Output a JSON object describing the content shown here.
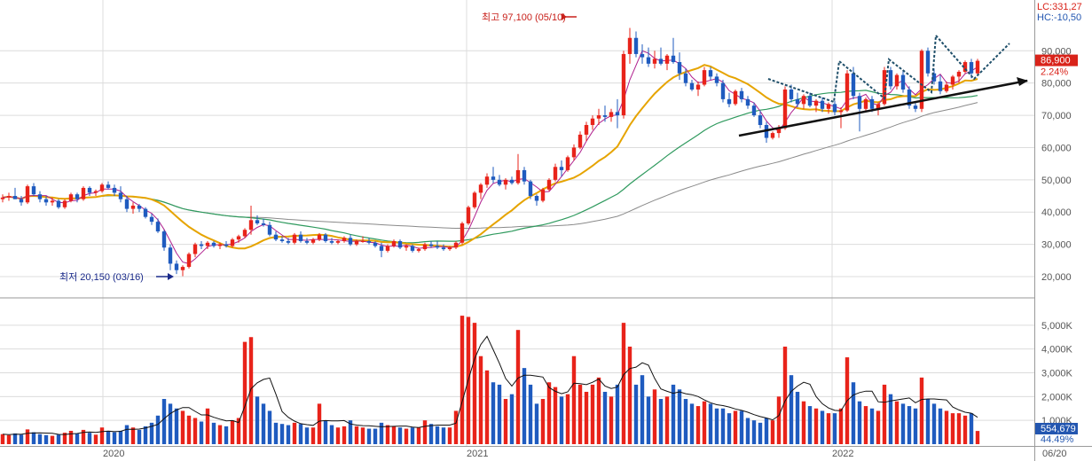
{
  "chart_data": {
    "type": "candlestick",
    "x_ticks": [
      "2020",
      "2021",
      "2022",
      "06/20"
    ],
    "price_axis": {
      "ticks": [
        "20,000",
        "30,000",
        "40,000",
        "50,000",
        "60,000",
        "70,000",
        "80,000",
        "90,000"
      ],
      "ylim": [
        14500,
        103000
      ]
    },
    "volume_axis": {
      "ticks": [
        "1,000K",
        "2,000K",
        "3,000K",
        "4,000K",
        "5,000K"
      ],
      "ylim": [
        0,
        6000
      ]
    },
    "readouts": {
      "lc": "LC:331,27",
      "hc": "HC:-10,50"
    },
    "current_price": {
      "value": 86900,
      "label": "86,900",
      "change": "2.24%"
    },
    "current_volume": {
      "label": "554,679",
      "pct": "44.49%"
    },
    "annotations": {
      "high": {
        "label": "최고 97,100 (05/10)",
        "value": 97100,
        "index": 91
      },
      "low": {
        "label": "최저 20,150 (03/16)",
        "value": 20150,
        "index": 29
      }
    },
    "colors": {
      "up": "#e8231a",
      "down": "#1f5bbf",
      "ma_short": "#b0208e",
      "ma_mid": "#e6a400",
      "ma_long": "#2f9a5e",
      "ma_longest": "#8a8a8a",
      "current_badge": "#d9231a",
      "volume_badge": "#2356b0"
    },
    "candles": [
      [
        44000,
        45500,
        43000,
        44500,
        420
      ],
      [
        44500,
        46000,
        43500,
        45000,
        380
      ],
      [
        45000,
        47500,
        44000,
        44000,
        450
      ],
      [
        44000,
        45000,
        42000,
        43000,
        400
      ],
      [
        43000,
        48500,
        42500,
        48000,
        620
      ],
      [
        48000,
        49000,
        45000,
        45500,
        500
      ],
      [
        45500,
        46500,
        43000,
        44000,
        420
      ],
      [
        44000,
        45000,
        42000,
        43000,
        380
      ],
      [
        43000,
        44500,
        42000,
        43500,
        350
      ],
      [
        43500,
        44000,
        41000,
        41500,
        400
      ],
      [
        41500,
        44000,
        41000,
        43500,
        480
      ],
      [
        43500,
        46000,
        43000,
        45500,
        560
      ],
      [
        45500,
        46000,
        43000,
        44000,
        440
      ],
      [
        44000,
        48000,
        43500,
        47500,
        600
      ],
      [
        47500,
        48000,
        45000,
        46000,
        480
      ],
      [
        46000,
        47000,
        45000,
        46500,
        400
      ],
      [
        46500,
        49000,
        46000,
        48500,
        700
      ],
      [
        48500,
        49500,
        47000,
        47500,
        550
      ],
      [
        47500,
        48500,
        45000,
        46000,
        500
      ],
      [
        46000,
        48000,
        43000,
        44000,
        560
      ],
      [
        44000,
        45000,
        40000,
        41000,
        800
      ],
      [
        41000,
        43000,
        39500,
        42000,
        700
      ],
      [
        42000,
        42500,
        40000,
        41000,
        600
      ],
      [
        41000,
        41500,
        38000,
        38500,
        750
      ],
      [
        38500,
        39500,
        36000,
        37000,
        900
      ],
      [
        37000,
        38000,
        33500,
        34000,
        1200
      ],
      [
        34000,
        34500,
        28000,
        29000,
        1900
      ],
      [
        29000,
        30000,
        22000,
        24000,
        1700
      ],
      [
        24000,
        25000,
        20800,
        22000,
        1500
      ],
      [
        22000,
        23500,
        20150,
        23000,
        1400
      ],
      [
        23000,
        27500,
        22500,
        27000,
        1200
      ],
      [
        27000,
        30500,
        26000,
        30000,
        1100
      ],
      [
        30000,
        31000,
        28500,
        29500,
        950
      ],
      [
        29500,
        31000,
        28500,
        30500,
        1500
      ],
      [
        30500,
        31000,
        29000,
        29500,
        900
      ],
      [
        29500,
        30500,
        28500,
        30000,
        800
      ],
      [
        30000,
        31000,
        29000,
        29500,
        750
      ],
      [
        29500,
        32000,
        29000,
        31500,
        1000
      ],
      [
        31500,
        33000,
        30500,
        32500,
        1100
      ],
      [
        32500,
        35000,
        32000,
        34500,
        4300
      ],
      [
        34500,
        42000,
        33000,
        37500,
        4500
      ],
      [
        37500,
        39000,
        36000,
        36500,
        2000
      ],
      [
        36500,
        38000,
        35500,
        36000,
        1700
      ],
      [
        36000,
        37000,
        32500,
        33000,
        1400
      ],
      [
        33000,
        34000,
        31000,
        31500,
        900
      ],
      [
        31500,
        32500,
        30500,
        31000,
        850
      ],
      [
        31000,
        32000,
        30000,
        30500,
        800
      ],
      [
        30500,
        33500,
        30000,
        33000,
        900
      ],
      [
        33000,
        34000,
        30500,
        31000,
        850
      ],
      [
        31000,
        32000,
        30000,
        30500,
        700
      ],
      [
        30500,
        32000,
        30000,
        31500,
        700
      ],
      [
        31500,
        33500,
        31000,
        33000,
        1700
      ],
      [
        33000,
        33500,
        30500,
        31000,
        1000
      ],
      [
        31000,
        32000,
        30000,
        30500,
        800
      ],
      [
        30500,
        31500,
        30000,
        31000,
        700
      ],
      [
        31000,
        32500,
        30500,
        32000,
        750
      ],
      [
        32000,
        33000,
        29500,
        30000,
        1000
      ],
      [
        30000,
        31500,
        29500,
        31000,
        750
      ],
      [
        31000,
        32500,
        30500,
        31000,
        700
      ],
      [
        31000,
        32000,
        30000,
        30500,
        650
      ],
      [
        30500,
        31000,
        29000,
        29500,
        650
      ],
      [
        29500,
        30500,
        26000,
        28000,
        900
      ],
      [
        28000,
        30000,
        27500,
        29500,
        800
      ],
      [
        29500,
        31500,
        29000,
        31000,
        750
      ],
      [
        31000,
        31500,
        28500,
        29000,
        700
      ],
      [
        29000,
        30000,
        28000,
        29500,
        650
      ],
      [
        29500,
        30000,
        27500,
        28000,
        700
      ],
      [
        28000,
        29000,
        27500,
        28500,
        700
      ],
      [
        28500,
        30500,
        28000,
        30000,
        1000
      ],
      [
        30000,
        31000,
        29000,
        29500,
        850
      ],
      [
        29500,
        31000,
        28500,
        29000,
        750
      ],
      [
        29000,
        30000,
        28000,
        28500,
        700
      ],
      [
        28500,
        29500,
        28000,
        29000,
        700
      ],
      [
        29000,
        31000,
        28500,
        30500,
        1400
      ],
      [
        30500,
        37000,
        30000,
        36500,
        5400
      ],
      [
        36500,
        42000,
        36000,
        41500,
        5350
      ],
      [
        41500,
        46500,
        41000,
        46000,
        5100
      ],
      [
        46000,
        49000,
        44000,
        48500,
        3700
      ],
      [
        48500,
        52000,
        47500,
        51000,
        3100
      ],
      [
        51000,
        54000,
        49000,
        50000,
        2600
      ],
      [
        50000,
        51500,
        48000,
        48500,
        2500
      ],
      [
        48500,
        50500,
        47000,
        50000,
        1900
      ],
      [
        50000,
        51000,
        48500,
        49000,
        2100
      ],
      [
        49000,
        58000,
        48500,
        53000,
        4800
      ],
      [
        53000,
        54000,
        48500,
        49500,
        3200
      ],
      [
        49500,
        50000,
        44000,
        45000,
        2500
      ],
      [
        45000,
        45500,
        42000,
        43500,
        1700
      ],
      [
        43500,
        47500,
        43000,
        47000,
        1900
      ],
      [
        47000,
        50500,
        46500,
        50000,
        2600
      ],
      [
        50000,
        55000,
        49500,
        54000,
        2400
      ],
      [
        54000,
        56000,
        51000,
        53000,
        2000
      ],
      [
        53000,
        57500,
        52500,
        57000,
        2100
      ],
      [
        57000,
        61000,
        56000,
        60000,
        3700
      ],
      [
        60000,
        65000,
        59500,
        64000,
        2500
      ],
      [
        64000,
        68000,
        62000,
        67000,
        2200
      ],
      [
        67000,
        70000,
        65500,
        69000,
        2500
      ],
      [
        69000,
        72000,
        67000,
        70000,
        2800
      ],
      [
        70000,
        73000,
        68000,
        69500,
        2200
      ],
      [
        69500,
        72000,
        68000,
        71000,
        2000
      ],
      [
        71000,
        75000,
        66000,
        70000,
        2500
      ],
      [
        70000,
        90000,
        69000,
        89000,
        5100
      ],
      [
        89000,
        97100,
        86000,
        94000,
        4100
      ],
      [
        94000,
        96000,
        88000,
        89000,
        2500
      ],
      [
        89000,
        92000,
        86000,
        88000,
        2900
      ],
      [
        88000,
        91000,
        85000,
        86000,
        2000
      ],
      [
        86000,
        90000,
        84500,
        87500,
        2300
      ],
      [
        87500,
        91000,
        85500,
        86000,
        1900
      ],
      [
        86000,
        89000,
        84000,
        88500,
        2000
      ],
      [
        88500,
        94000,
        86000,
        86500,
        2500
      ],
      [
        86500,
        89500,
        81000,
        83000,
        2300
      ],
      [
        83000,
        84500,
        79000,
        80000,
        1900
      ],
      [
        80000,
        81000,
        77500,
        78000,
        1700
      ],
      [
        78000,
        80500,
        76000,
        79500,
        1600
      ],
      [
        79500,
        85000,
        79000,
        84000,
        1800
      ],
      [
        84000,
        85000,
        81000,
        82000,
        1700
      ],
      [
        82000,
        83000,
        79000,
        80000,
        1500
      ],
      [
        80000,
        81000,
        74000,
        75000,
        1500
      ],
      [
        75000,
        77000,
        72500,
        73500,
        1300
      ],
      [
        73500,
        78000,
        73000,
        77500,
        1400
      ],
      [
        77500,
        78500,
        74000,
        75000,
        1400
      ],
      [
        75000,
        76000,
        72000,
        73000,
        1100
      ],
      [
        73000,
        74000,
        69500,
        70000,
        1000
      ],
      [
        70000,
        71500,
        66000,
        67000,
        900
      ],
      [
        67000,
        68000,
        61500,
        63000,
        1100
      ],
      [
        63000,
        65000,
        62500,
        64500,
        1000
      ],
      [
        64500,
        67000,
        63000,
        66000,
        2000
      ],
      [
        66000,
        79000,
        65500,
        78000,
        4100
      ],
      [
        78000,
        79500,
        74000,
        75000,
        2900
      ],
      [
        75000,
        77000,
        72500,
        73500,
        2200
      ],
      [
        73500,
        76500,
        72000,
        76000,
        1800
      ],
      [
        76000,
        77000,
        72500,
        73000,
        1600
      ],
      [
        73000,
        75000,
        71000,
        74500,
        1500
      ],
      [
        74500,
        75500,
        71000,
        72000,
        1400
      ],
      [
        72000,
        74000,
        70500,
        73500,
        1300
      ],
      [
        73500,
        74500,
        70000,
        71000,
        1300
      ],
      [
        71000,
        72500,
        66000,
        71500,
        1500
      ],
      [
        71500,
        84000,
        71000,
        83000,
        3650
      ],
      [
        83000,
        85000,
        75000,
        76000,
        2600
      ],
      [
        76000,
        77000,
        65000,
        72000,
        1800
      ],
      [
        72000,
        75500,
        71000,
        75000,
        1600
      ],
      [
        75000,
        76000,
        71000,
        72000,
        1500
      ],
      [
        72000,
        74000,
        70000,
        73500,
        1400
      ],
      [
        73500,
        85000,
        73000,
        84000,
        2500
      ],
      [
        84000,
        85000,
        78000,
        79000,
        2100
      ],
      [
        79000,
        83000,
        78000,
        82500,
        1800
      ],
      [
        82500,
        84000,
        77000,
        78000,
        1700
      ],
      [
        78000,
        79000,
        72000,
        73000,
        1600
      ],
      [
        73000,
        74000,
        71000,
        72000,
        1500
      ],
      [
        72000,
        90500,
        71000,
        90000,
        2800
      ],
      [
        90000,
        91000,
        82000,
        83000,
        1900
      ],
      [
        83000,
        84500,
        79500,
        80500,
        1700
      ],
      [
        80500,
        82500,
        76500,
        77500,
        1500
      ],
      [
        77500,
        80500,
        77000,
        79500,
        1400
      ],
      [
        79500,
        82500,
        78000,
        82000,
        1300
      ],
      [
        82000,
        84000,
        80000,
        83500,
        1300
      ],
      [
        83500,
        87000,
        83000,
        86500,
        1200
      ],
      [
        86500,
        87500,
        81500,
        83000,
        1300
      ],
      [
        83000,
        87500,
        82500,
        86900,
        555
      ]
    ]
  }
}
